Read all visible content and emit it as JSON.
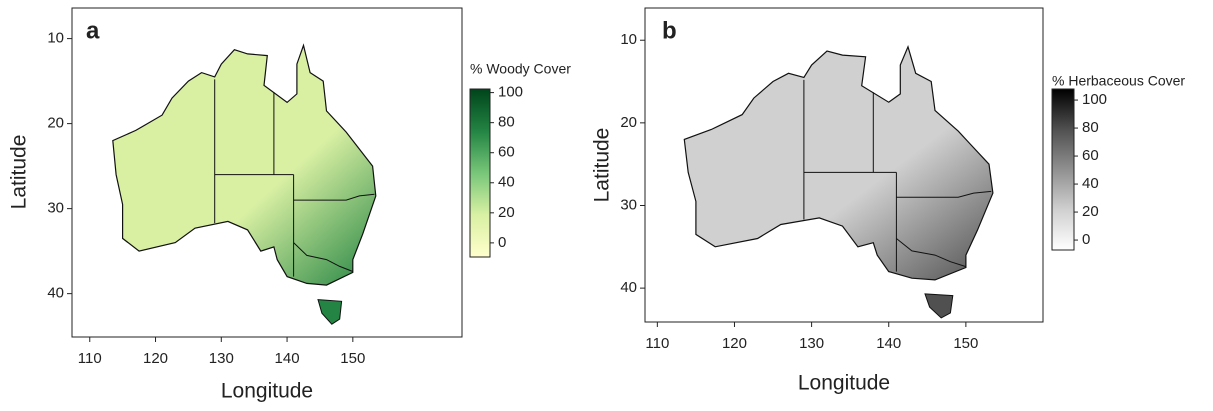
{
  "chart_data": [
    {
      "type": "map",
      "panel_label": "a",
      "xlabel": "Longitude",
      "ylabel": "Latitude",
      "xlim": [
        107.3,
        166.6
      ],
      "ylim": [
        6.4,
        45.1
      ],
      "xticks": [
        110,
        120,
        130,
        140,
        150
      ],
      "yticks": [
        10,
        20,
        30,
        40
      ],
      "colorbar": {
        "title": "% Woody Cover",
        "lim": [
          -9.4,
          102.4
        ],
        "ticks": [
          0,
          20,
          40,
          60,
          80,
          100
        ],
        "colors": [
          "#ffffcc",
          "#d9f0a3",
          "#78c679",
          "#238443",
          "#00441b"
        ]
      }
    },
    {
      "type": "map",
      "panel_label": "b",
      "xlabel": "Longitude",
      "ylabel": "Latitude",
      "xlim": [
        108.4,
        160
      ],
      "ylim": [
        6.1,
        44.1
      ],
      "xticks": [
        110,
        120,
        130,
        140,
        150
      ],
      "yticks": [
        10,
        20,
        30,
        40
      ],
      "colorbar": {
        "title": "% Herbaceous Cover",
        "lim": [
          -7.1,
          107.9
        ],
        "ticks": [
          0,
          20,
          40,
          60,
          80,
          100
        ],
        "colors": [
          "#ffffff",
          "#d0d0d0",
          "#909090",
          "#505050",
          "#000000"
        ]
      }
    }
  ]
}
